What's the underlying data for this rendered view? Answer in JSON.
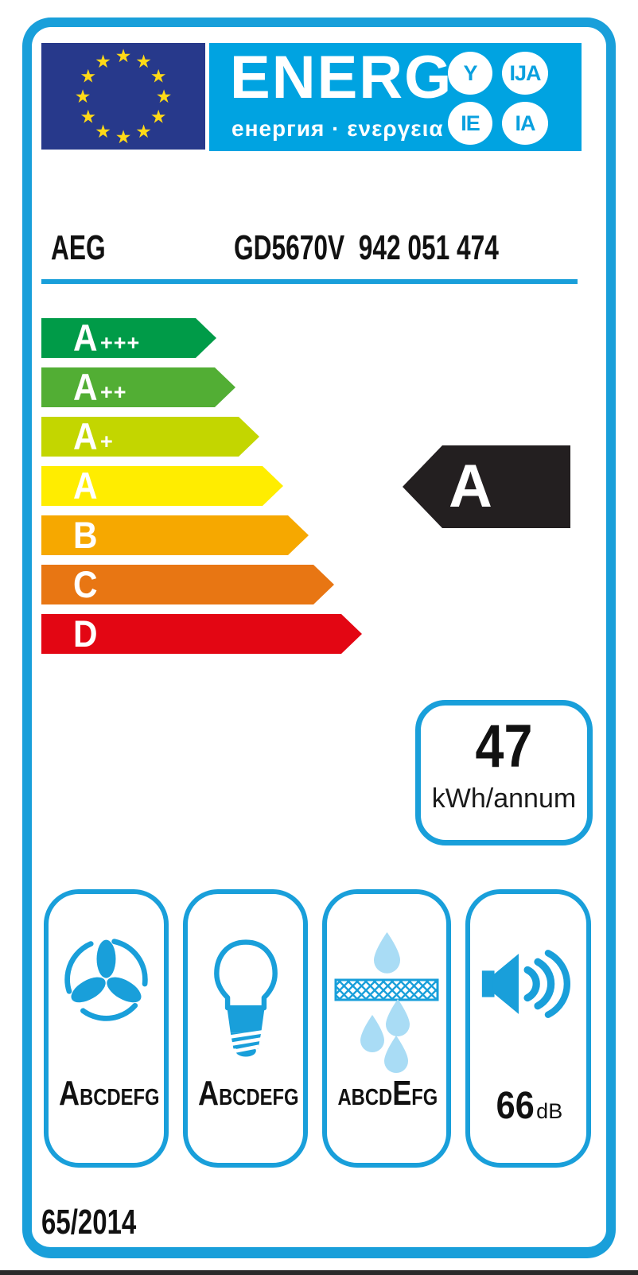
{
  "header": {
    "logo_text": "ENERG",
    "logo_subtitle": "енергия · ενεργεια",
    "suffix_circles": [
      "Y",
      "IJA",
      "IE",
      "IA"
    ]
  },
  "product": {
    "brand": "AEG",
    "model": "GD5670V  942 051 474"
  },
  "scale": [
    {
      "grade": "A",
      "suffix": "+++",
      "color": "#009B48"
    },
    {
      "grade": "A",
      "suffix": "++",
      "color": "#52AE34"
    },
    {
      "grade": "A",
      "suffix": "+",
      "color": "#C3D600"
    },
    {
      "grade": "A",
      "suffix": "",
      "color": "#FFED00"
    },
    {
      "grade": "B",
      "suffix": "",
      "color": "#F6A800"
    },
    {
      "grade": "C",
      "suffix": "",
      "color": "#E87613"
    },
    {
      "grade": "D",
      "suffix": "",
      "color": "#E30613"
    }
  ],
  "rating": {
    "grade": "A",
    "color": "#231F20"
  },
  "annual_energy": {
    "value": "47",
    "unit": "kWh/annum"
  },
  "features": [
    {
      "icon": "fan-icon",
      "pre": "",
      "big": "A",
      "post": "BCDEFG"
    },
    {
      "icon": "bulb-icon",
      "pre": "",
      "big": "A",
      "post": "BCDEFG"
    },
    {
      "icon": "grease-filter-icon",
      "pre": "ABCD",
      "big": "E",
      "post": "FG"
    },
    {
      "icon": "noise-icon",
      "value": "66",
      "unit": "dB"
    }
  ],
  "regulation": "65/2014",
  "colors": {
    "frame_blue": "#199FDA",
    "banner_blue": "#00A3E1",
    "eu_flag_navy": "#27398B",
    "star_yellow": "#FFD917",
    "droplet_light_blue": "#A9DCF5",
    "rating_black": "#231F20"
  }
}
